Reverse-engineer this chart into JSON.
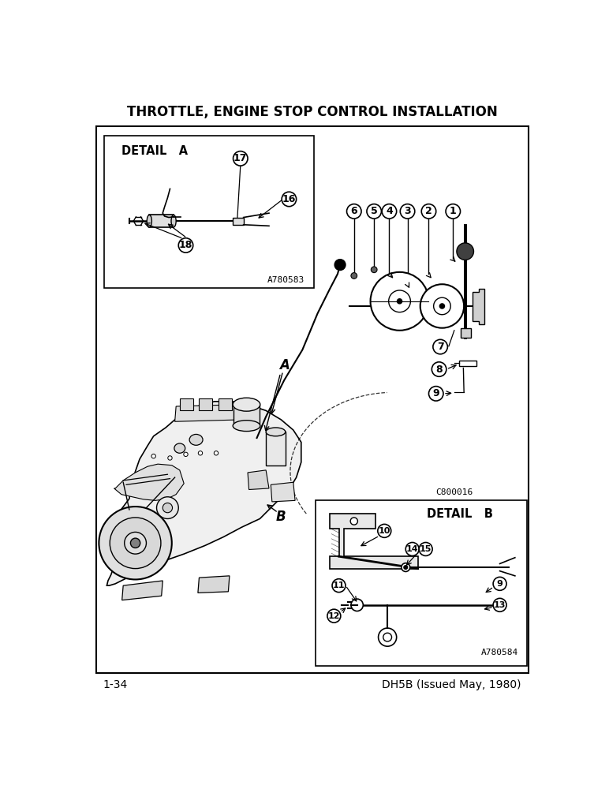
{
  "title": "THROTTLE, ENGINE STOP CONTROL INSTALLATION",
  "title_fontsize": 12,
  "title_fontweight": "bold",
  "footer_left": "1-34",
  "footer_right": "DH5B (Issued May, 1980)",
  "footer_fontsize": 10,
  "bg_color": "#ffffff",
  "detail_a_label": "DETAIL   A",
  "detail_b_label": "DETAIL   B",
  "ref_a_code": "A780583",
  "ref_b_code": "A780584",
  "main_ref_code": "C800016",
  "label_A": "A",
  "label_B": "B"
}
